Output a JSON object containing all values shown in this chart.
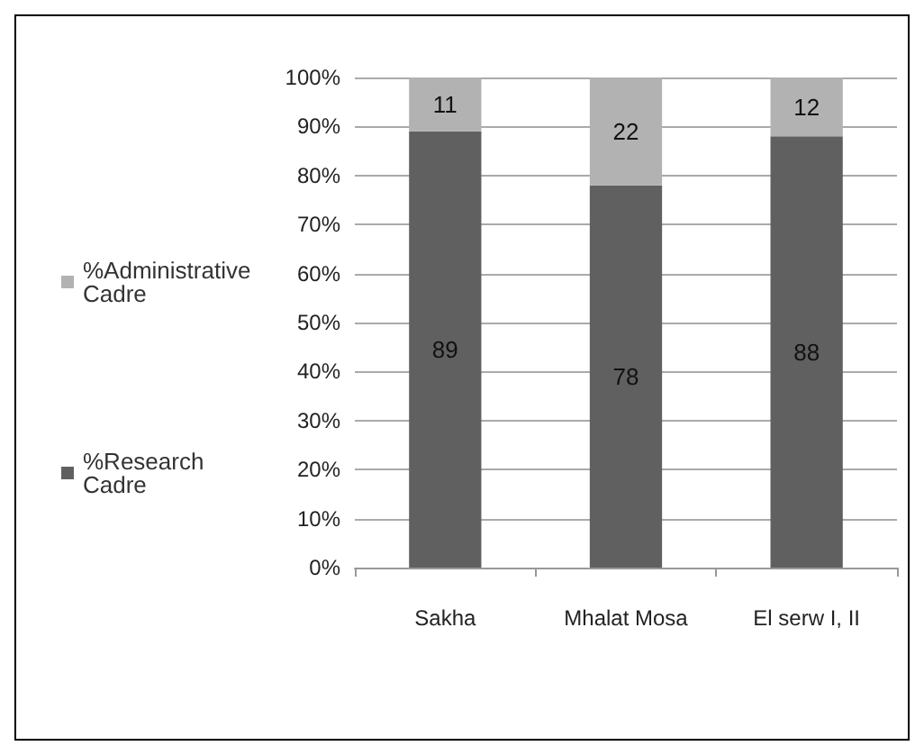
{
  "chart_data": {
    "type": "bar",
    "stacked": true,
    "categories": [
      "Sakha",
      "Mhalat Mosa",
      "El serw I, II"
    ],
    "series": [
      {
        "name": "%Research Cadre",
        "color": "#606060",
        "values": [
          89,
          78,
          88
        ]
      },
      {
        "name": "%Administrative Cadre",
        "color": "#b2b2b2",
        "values": [
          11,
          22,
          12
        ]
      }
    ],
    "ylim": [
      0,
      100
    ],
    "yticks": [
      {
        "value": 0,
        "label": "0%"
      },
      {
        "value": 10,
        "label": "10%"
      },
      {
        "value": 20,
        "label": "20%"
      },
      {
        "value": 30,
        "label": "30%"
      },
      {
        "value": 40,
        "label": "40%"
      },
      {
        "value": 50,
        "label": "50%"
      },
      {
        "value": 60,
        "label": "60%"
      },
      {
        "value": 70,
        "label": "70%"
      },
      {
        "value": 80,
        "label": "80%"
      },
      {
        "value": 90,
        "label": "90%"
      },
      {
        "value": 100,
        "label": "100%"
      }
    ],
    "grid": "y",
    "legend": "left",
    "data_labels": true
  }
}
